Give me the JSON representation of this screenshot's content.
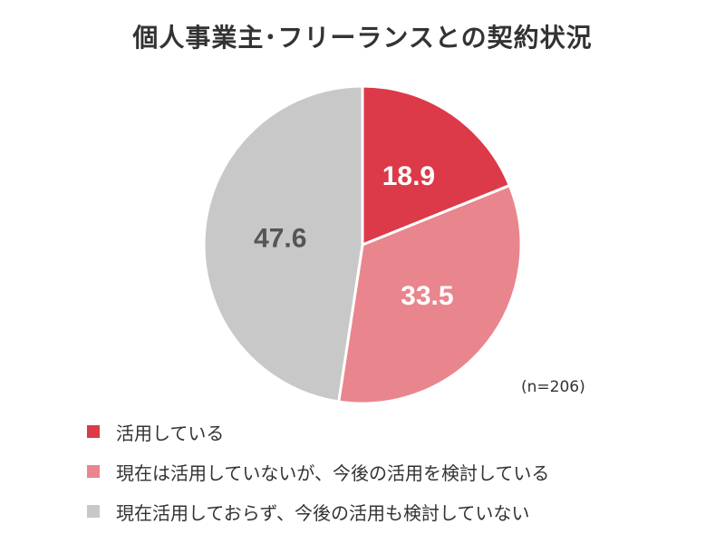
{
  "chart_data": {
    "type": "pie",
    "title": "個人事業主･フリーランスとの契約状況",
    "note": "(n=206)",
    "start_angle_deg": 0,
    "direction": "clockwise",
    "slices": [
      {
        "label": "活用している",
        "value": 18.9,
        "display": "18.9",
        "color": "#dc3a48",
        "label_color": "#ffffff"
      },
      {
        "label": "現在は活用していないが、今後の活用を検討している",
        "value": 33.5,
        "display": "33.5",
        "color": "#e9858d",
        "label_color": "#ffffff"
      },
      {
        "label": "現在活用しておらず、今後の活用も検討していない",
        "value": 47.6,
        "display": "47.6",
        "color": "#c8c8c8",
        "label_color": "#555555"
      }
    ],
    "legend_position": "bottom-left"
  }
}
